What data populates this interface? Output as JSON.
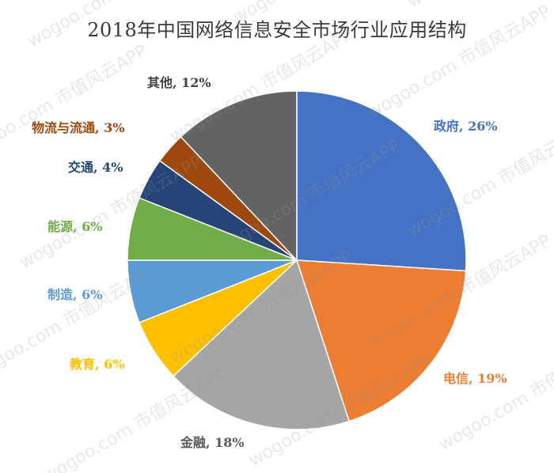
{
  "chart_data": {
    "type": "pie",
    "title": "2018年中国网络信息安全市场行业应用结构",
    "slices": [
      {
        "label": "政府, 26%",
        "name": "政府",
        "value": 26,
        "color": "#4472C4"
      },
      {
        "label": "电信, 19%",
        "name": "电信",
        "value": 19,
        "color": "#ED7D31"
      },
      {
        "label": "金融, 18%",
        "name": "金融",
        "value": 18,
        "color": "#A5A5A5"
      },
      {
        "label": "教育, 6%",
        "name": "教育",
        "value": 6,
        "color": "#FFC000"
      },
      {
        "label": "制造, 6%",
        "name": "制造",
        "value": 6,
        "color": "#5B9BD5"
      },
      {
        "label": "能源, 6%",
        "name": "能源",
        "value": 6,
        "color": "#70AD47"
      },
      {
        "label": "交通, 4%",
        "name": "交通",
        "value": 4,
        "color": "#264478"
      },
      {
        "label": "物流与流通, 3%",
        "name": "物流与流通",
        "value": 3,
        "color": "#9E480E"
      },
      {
        "label": "其他, 12%",
        "name": "其他",
        "value": 12,
        "color": "#636363"
      }
    ],
    "label_colors": {
      "政府": "#4472C4",
      "电信": "#ED7D31",
      "金融": "#595959",
      "教育": "#FFC000",
      "制造": "#5B9BD5",
      "能源": "#70AD47",
      "交通": "#264478",
      "物流与流通": "#9E480E",
      "其他": "#404040"
    }
  },
  "watermark": {
    "text1": "wogoo.com",
    "text2": "市值风云APP"
  }
}
